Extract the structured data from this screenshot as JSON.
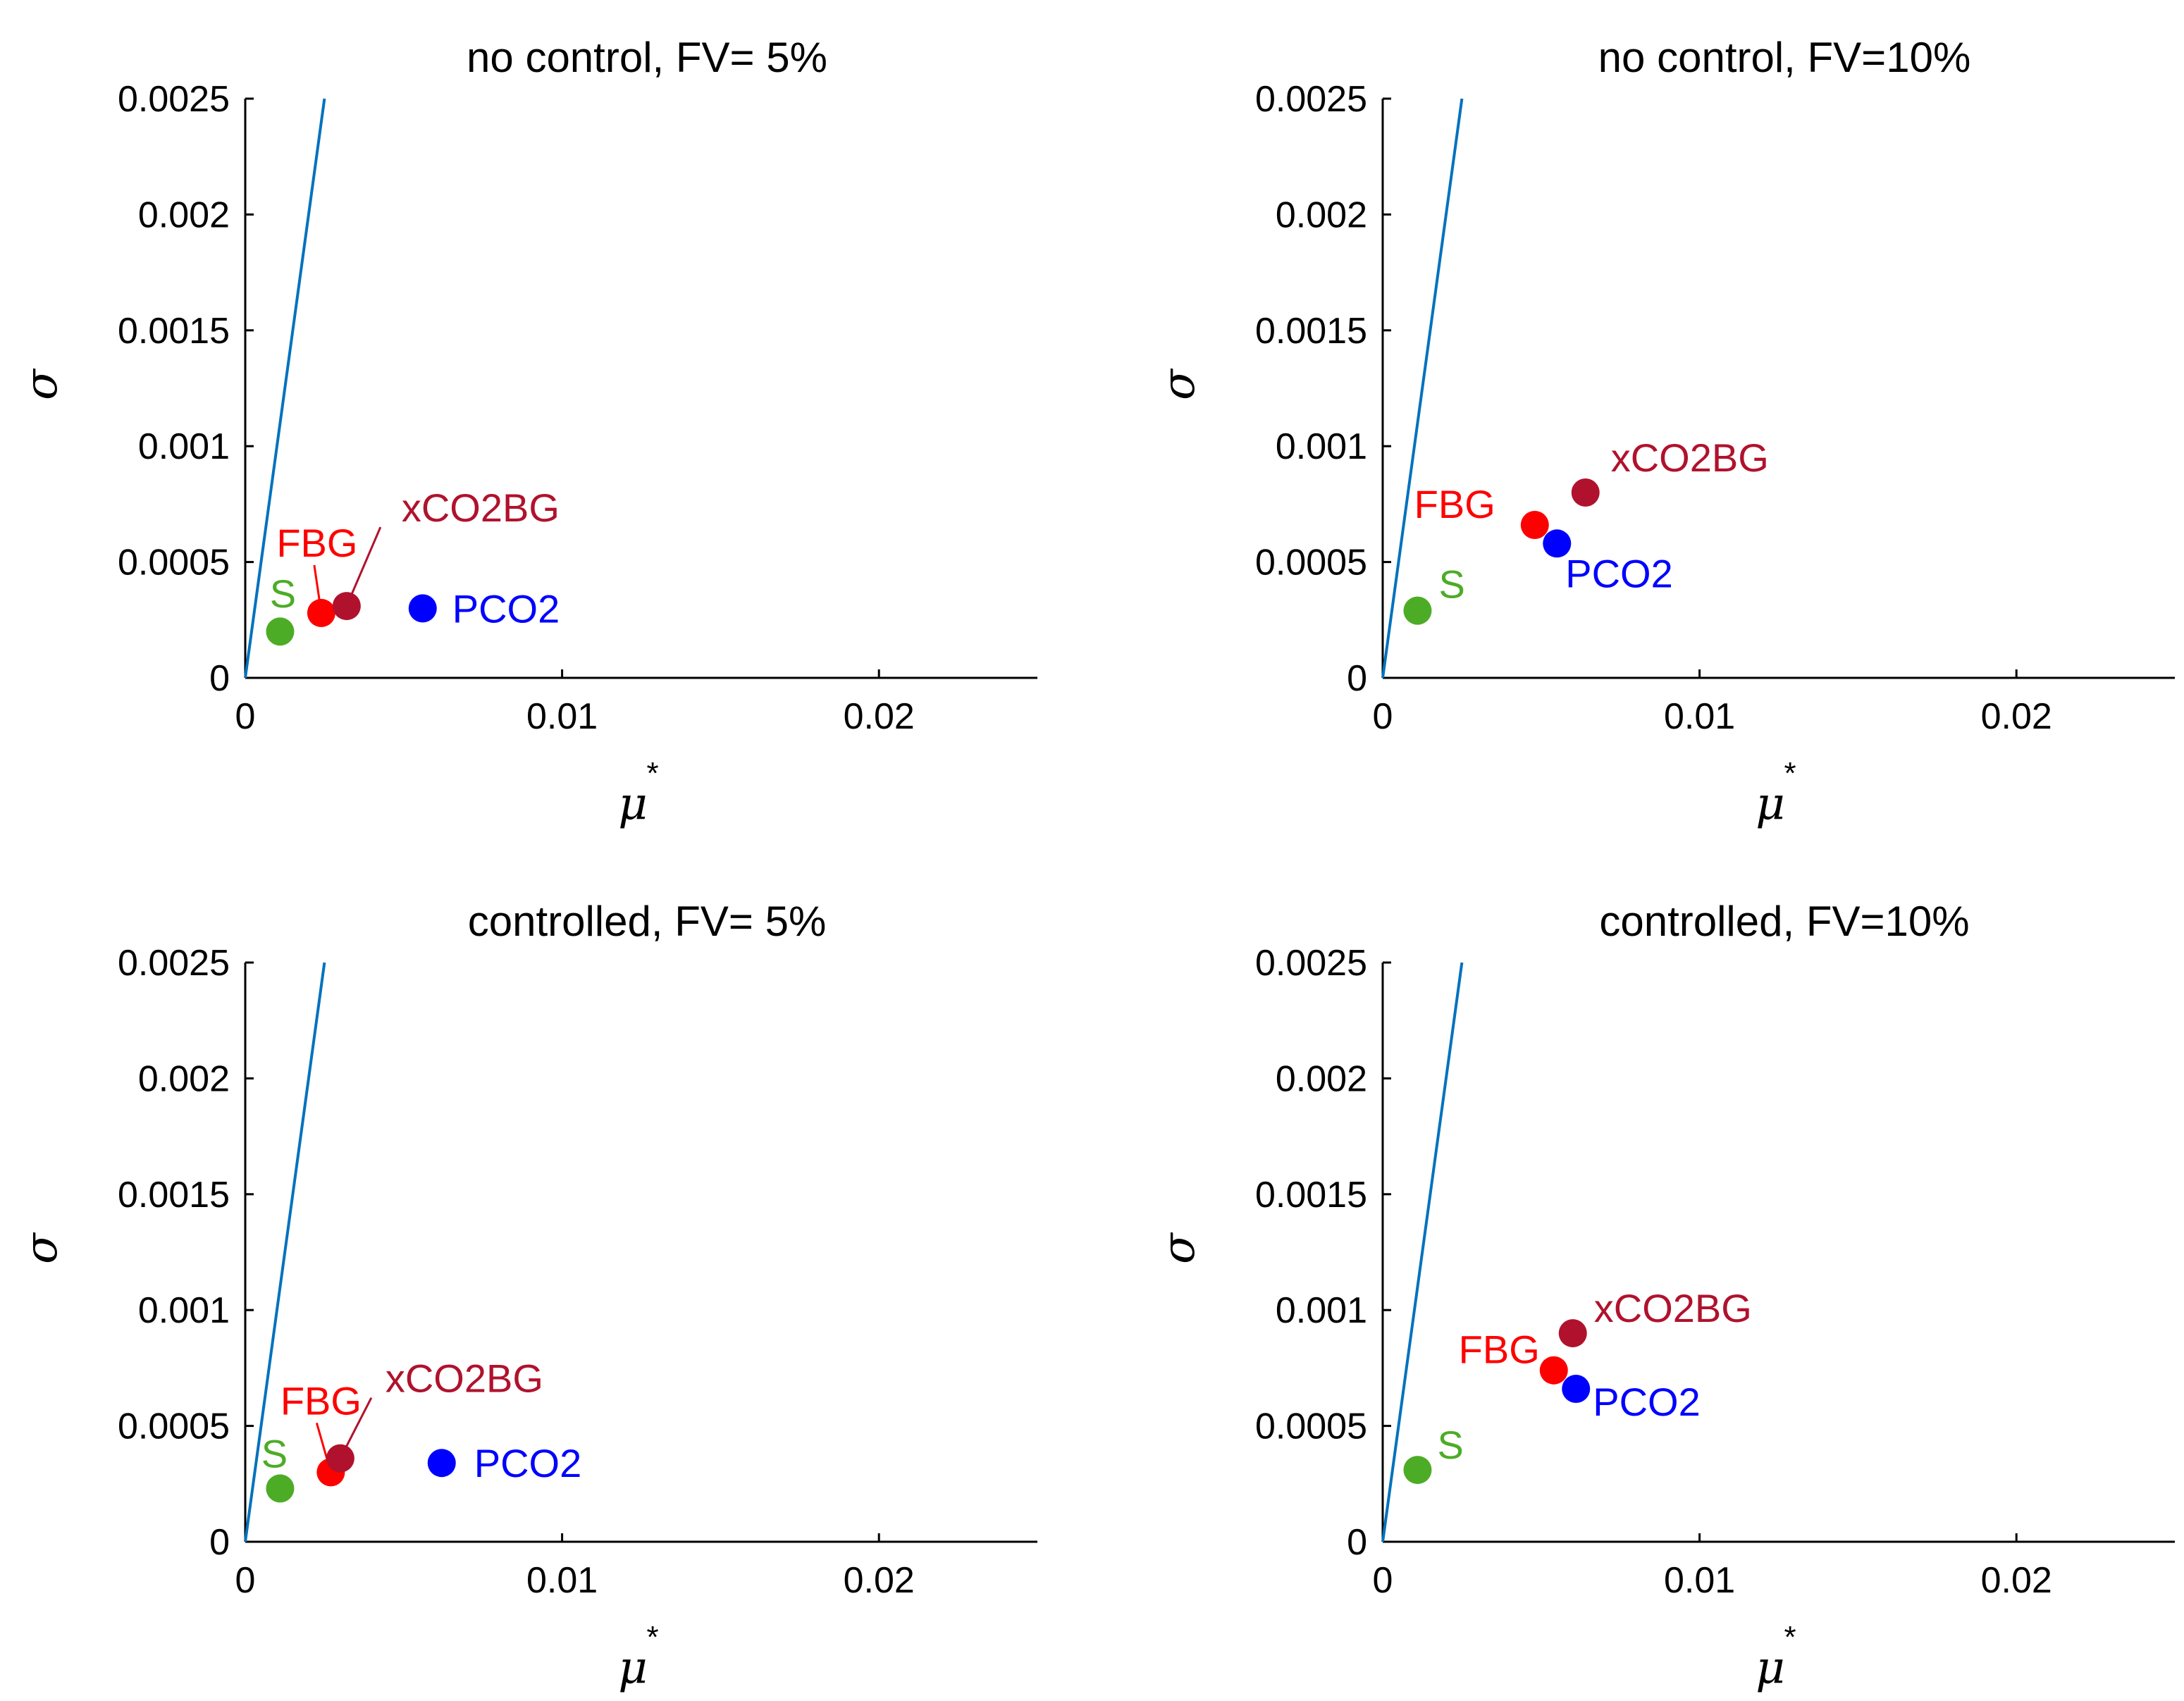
{
  "chart_data": [
    {
      "type": "scatter",
      "title": "no control, FV= 5%",
      "xlabel": "μ",
      "xlabel_superscript": "*",
      "ylabel": "σ",
      "xlim": [
        0,
        0.025
      ],
      "ylim": [
        0,
        0.0025
      ],
      "xticks": [
        "0",
        "0.01",
        "0.02"
      ],
      "xtick_values": [
        0,
        0.01,
        0.02
      ],
      "yticks": [
        "0",
        "0.0005",
        "0.001",
        "0.0015",
        "0.002",
        "0.0025"
      ],
      "ytick_values": [
        0,
        0.0005,
        0.001,
        0.0015,
        0.002,
        0.0025
      ],
      "reference_line": {
        "x": [
          0,
          0.0025
        ],
        "y": [
          0,
          0.0025
        ],
        "color": "#0072BD"
      },
      "points": [
        {
          "label": "S",
          "x": 0.0011,
          "y": 0.0002,
          "color": "#4DAC26"
        },
        {
          "label": "FBG",
          "x": 0.0024,
          "y": 0.00028,
          "color": "#FF0000"
        },
        {
          "label": "xCO2BG",
          "x": 0.0032,
          "y": 0.00031,
          "color": "#B0122D"
        },
        {
          "label": "PCO2",
          "x": 0.0056,
          "y": 0.0003,
          "color": "#0000FF"
        }
      ]
    },
    {
      "type": "scatter",
      "title": "no control, FV=10%",
      "xlabel": "μ",
      "xlabel_superscript": "*",
      "ylabel": "σ",
      "xlim": [
        0,
        0.025
      ],
      "ylim": [
        0,
        0.0025
      ],
      "xticks": [
        "0",
        "0.01",
        "0.02"
      ],
      "xtick_values": [
        0,
        0.01,
        0.02
      ],
      "yticks": [
        "0",
        "0.0005",
        "0.001",
        "0.0015",
        "0.002",
        "0.0025"
      ],
      "ytick_values": [
        0,
        0.0005,
        0.001,
        0.0015,
        0.002,
        0.0025
      ],
      "reference_line": {
        "x": [
          0,
          0.0025
        ],
        "y": [
          0,
          0.0025
        ],
        "color": "#0072BD"
      },
      "points": [
        {
          "label": "S",
          "x": 0.0011,
          "y": 0.00029,
          "color": "#4DAC26"
        },
        {
          "label": "FBG",
          "x": 0.0048,
          "y": 0.00066,
          "color": "#FF0000"
        },
        {
          "label": "PCO2",
          "x": 0.0055,
          "y": 0.00058,
          "color": "#0000FF"
        },
        {
          "label": "xCO2BG",
          "x": 0.0064,
          "y": 0.0008,
          "color": "#B0122D"
        }
      ]
    },
    {
      "type": "scatter",
      "title": "controlled, FV= 5%",
      "xlabel": "μ",
      "xlabel_superscript": "*",
      "ylabel": "σ",
      "xlim": [
        0,
        0.025
      ],
      "ylim": [
        0,
        0.0025
      ],
      "xticks": [
        "0",
        "0.01",
        "0.02"
      ],
      "xtick_values": [
        0,
        0.01,
        0.02
      ],
      "yticks": [
        "0",
        "0.0005",
        "0.001",
        "0.0015",
        "0.002",
        "0.0025"
      ],
      "ytick_values": [
        0,
        0.0005,
        0.001,
        0.0015,
        0.002,
        0.0025
      ],
      "reference_line": {
        "x": [
          0,
          0.0025
        ],
        "y": [
          0,
          0.0025
        ],
        "color": "#0072BD"
      },
      "points": [
        {
          "label": "S",
          "x": 0.0011,
          "y": 0.00023,
          "color": "#4DAC26"
        },
        {
          "label": "FBG",
          "x": 0.0027,
          "y": 0.0003,
          "color": "#FF0000"
        },
        {
          "label": "xCO2BG",
          "x": 0.003,
          "y": 0.00036,
          "color": "#B0122D"
        },
        {
          "label": "PCO2",
          "x": 0.0062,
          "y": 0.00034,
          "color": "#0000FF"
        }
      ]
    },
    {
      "type": "scatter",
      "title": "controlled, FV=10%",
      "xlabel": "μ",
      "xlabel_superscript": "*",
      "ylabel": "σ",
      "xlim": [
        0,
        0.025
      ],
      "ylim": [
        0,
        0.0025
      ],
      "xticks": [
        "0",
        "0.01",
        "0.02"
      ],
      "xtick_values": [
        0,
        0.01,
        0.02
      ],
      "yticks": [
        "0",
        "0.0005",
        "0.001",
        "0.0015",
        "0.002",
        "0.0025"
      ],
      "ytick_values": [
        0,
        0.0005,
        0.001,
        0.0015,
        0.002,
        0.0025
      ],
      "reference_line": {
        "x": [
          0,
          0.0025
        ],
        "y": [
          0,
          0.0025
        ],
        "color": "#0072BD"
      },
      "points": [
        {
          "label": "S",
          "x": 0.0011,
          "y": 0.00031,
          "color": "#4DAC26"
        },
        {
          "label": "FBG",
          "x": 0.0054,
          "y": 0.00074,
          "color": "#FF0000"
        },
        {
          "label": "PCO2",
          "x": 0.0061,
          "y": 0.00066,
          "color": "#0000FF"
        },
        {
          "label": "xCO2BG",
          "x": 0.006,
          "y": 0.0009,
          "color": "#B0122D"
        }
      ]
    }
  ]
}
